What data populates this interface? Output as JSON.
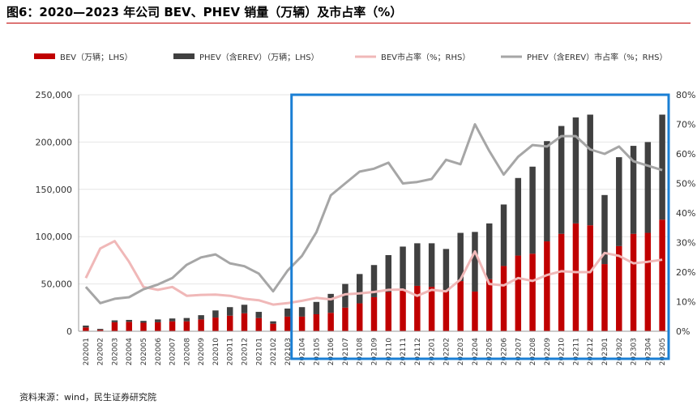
{
  "title": "图6：2020—2023 年公司 BEV、PHEV 销量（万辆）及市占率（%）",
  "source": "资料来源：wind，民生证券研究院",
  "colors": {
    "bev": "#c00000",
    "phev": "#404040",
    "bev_share": "#f0b8b8",
    "phev_share": "#a6a6a6",
    "highlight": "#1a7fd4"
  },
  "chart_data": {
    "type": "bar",
    "stacked": true,
    "categories": [
      "202001",
      "202002",
      "202003",
      "202004",
      "202005",
      "202006",
      "202007",
      "202008",
      "202009",
      "202010",
      "202011",
      "202012",
      "202101",
      "202102",
      "202103",
      "202104",
      "202105",
      "202106",
      "202107",
      "202108",
      "202109",
      "202110",
      "202111",
      "202112",
      "202201",
      "202202",
      "202203",
      "202204",
      "202205",
      "202206",
      "202207",
      "202208",
      "202209",
      "202210",
      "202211",
      "202212",
      "202301",
      "202302",
      "202303",
      "202304",
      "202305"
    ],
    "series": [
      {
        "name": "BEV（万辆；LHS）",
        "type": "bar",
        "axis": "left",
        "values": [
          4000,
          1500,
          9500,
          10000,
          9000,
          9500,
          10500,
          10500,
          12500,
          14500,
          16500,
          19000,
          14000,
          8000,
          15500,
          15500,
          18000,
          19500,
          25000,
          29500,
          36000,
          41500,
          44500,
          48000,
          47000,
          42000,
          53000,
          42000,
          55000,
          69000,
          80000,
          82000,
          95000,
          103000,
          114000,
          112000,
          71000,
          90000,
          103000,
          104000,
          118000
        ]
      },
      {
        "name": "PHEV（含EREV）（万辆；LHS）",
        "type": "bar",
        "axis": "left",
        "values": [
          2000,
          1000,
          2000,
          2000,
          2000,
          3000,
          3000,
          3500,
          4500,
          7500,
          9000,
          9000,
          6500,
          2500,
          8500,
          10000,
          13000,
          20000,
          25000,
          31000,
          34000,
          39000,
          45000,
          45000,
          46000,
          45000,
          51000,
          63000,
          59000,
          65000,
          82000,
          92000,
          106000,
          114000,
          112000,
          117000,
          73000,
          94000,
          93000,
          96000,
          111000
        ]
      },
      {
        "name": "BEV市占率（%；RHS）",
        "type": "line",
        "axis": "right",
        "values": [
          18,
          28,
          30.5,
          23.5,
          15,
          14,
          15,
          12,
          12.3,
          12.4,
          12,
          11,
          10.5,
          9,
          9.5,
          10.3,
          11.3,
          10.8,
          12.5,
          12.8,
          13.3,
          14,
          14.1,
          12,
          14,
          13.5,
          17.5,
          27,
          16,
          15.5,
          18,
          17,
          19,
          20.3,
          20,
          20,
          26.5,
          25.5,
          23,
          23.5,
          24.2
        ]
      },
      {
        "name": "PHEV（含EREV）市占率（%；RHS）",
        "type": "line",
        "axis": "right",
        "values": [
          15,
          9.5,
          11,
          11.5,
          14.2,
          15.8,
          18,
          22.5,
          25,
          26,
          23,
          22,
          19.5,
          13.5,
          20.5,
          25.5,
          33.5,
          46,
          50,
          54,
          55,
          57,
          50,
          50.5,
          51.5,
          58,
          56.5,
          70,
          61,
          53,
          59,
          63,
          62.5,
          66,
          66,
          61.5,
          60,
          62.5,
          57.5,
          56,
          54.5
        ]
      }
    ],
    "y_left": {
      "min": 0,
      "max": 250000,
      "ticks": [
        "0",
        "50,000",
        "100,000",
        "150,000",
        "200,000",
        "250,000"
      ]
    },
    "y_right": {
      "min": 0,
      "max": 80,
      "ticks": [
        "0%",
        "10%",
        "20%",
        "30%",
        "40%",
        "50%",
        "60%",
        "70%",
        "80%"
      ]
    },
    "legend_placement": "top",
    "highlight_range": {
      "from": "202104",
      "to": "202305"
    }
  }
}
